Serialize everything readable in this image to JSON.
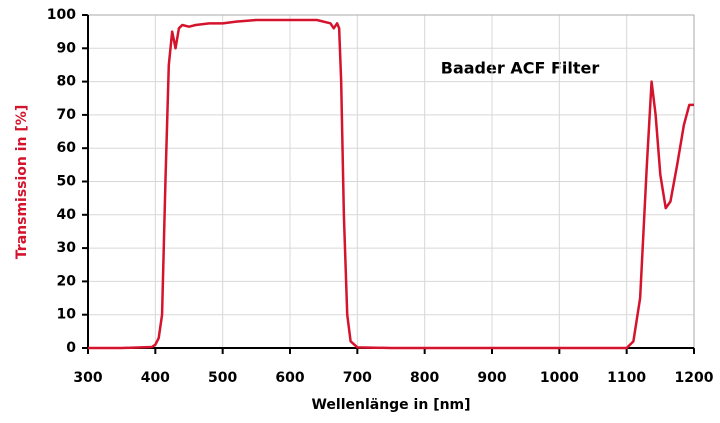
{
  "chart_data": {
    "type": "line",
    "title": "Baader ACF Filter",
    "x_label": "Wellenlänge in [nm]",
    "y_label": "Transmission in [%]",
    "x": [
      300,
      350,
      395,
      400,
      405,
      410,
      415,
      420,
      425,
      430,
      435,
      440,
      450,
      460,
      480,
      500,
      520,
      550,
      600,
      640,
      660,
      665,
      670,
      673,
      676,
      680,
      685,
      690,
      700,
      750,
      800,
      900,
      1000,
      1100,
      1110,
      1120,
      1130,
      1137,
      1143,
      1150,
      1158,
      1165,
      1175,
      1185,
      1193,
      1200
    ],
    "series": [
      {
        "name": "Transmission",
        "color": "#d4142c",
        "values": [
          0,
          0,
          0.3,
          1,
          3,
          10,
          50,
          85,
          95,
          90,
          96,
          97,
          96.5,
          97,
          97.5,
          97.5,
          98,
          98.5,
          98.5,
          98.5,
          97.5,
          96,
          97.5,
          96,
          80,
          40,
          10,
          2,
          0.2,
          0,
          0,
          0,
          0,
          0,
          2,
          15,
          55,
          80,
          70,
          52,
          42,
          44,
          55,
          67,
          73,
          73
        ]
      }
    ],
    "xlim": [
      300,
      1200
    ],
    "xticks": [
      300,
      400,
      500,
      600,
      700,
      800,
      900,
      1000,
      1100,
      1200
    ],
    "ylim": [
      0,
      100
    ],
    "yticks": [
      0,
      10,
      20,
      30,
      40,
      50,
      60,
      70,
      80,
      90,
      100
    ],
    "grid": true
  }
}
